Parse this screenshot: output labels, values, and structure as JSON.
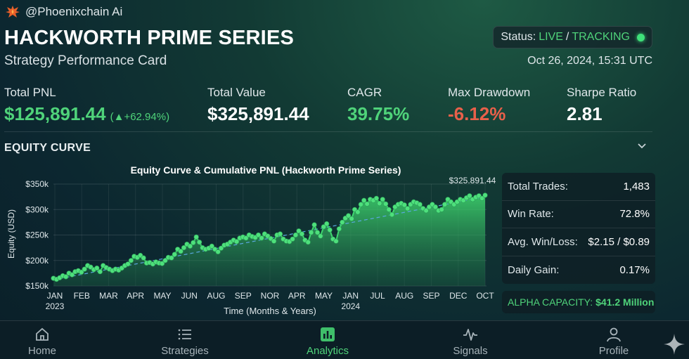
{
  "brand": {
    "name": "@Phoenixchain Ai",
    "icon": "phoenix-logo"
  },
  "header": {
    "title": "HACKWORTH PRIME SERIES",
    "subtitle": "Strategy Performance Card",
    "status_label": "Status:",
    "status_live": "LIVE",
    "status_sep": "/",
    "status_tracking": "TRACKING",
    "timestamp": "Oct 26, 2024, 15:31 UTC"
  },
  "metrics": [
    {
      "label": "Total PNL",
      "value": "$125,891.44",
      "delta": "(▲+62.94%)"
    },
    {
      "label": "Total Value",
      "value": "$325,891.44"
    },
    {
      "label": "CAGR",
      "value": "39.75%"
    },
    {
      "label": "Max Drawdown",
      "value": "-6.12%"
    },
    {
      "label": "Sharpe Ratio",
      "value": "2.81"
    }
  ],
  "section": {
    "title": "EQUITY CURVE"
  },
  "chart_data": {
    "type": "area",
    "title": "Equity Curve & Cumulative PNL (Hackworth Prime Series)",
    "xlabel": "Time (Months & Years)",
    "ylabel": "Equity (USD)",
    "ylim": [
      150000,
      330000
    ],
    "yticks": [
      "$150k",
      "$200k",
      "$250k",
      "$300k",
      "$350k"
    ],
    "ytick_values": [
      150000,
      200000,
      250000,
      300000,
      350000
    ],
    "xticks": [
      "JAN",
      "FEB",
      "MAR",
      "APR",
      "MAY",
      "JUN",
      "AUG",
      "SEP",
      "NOR",
      "APR",
      "MAY",
      "JAN",
      "JUL",
      "AUG",
      "SEP",
      "DEC",
      "OCT"
    ],
    "year_labels": [
      {
        "tick": 0,
        "text": "2023"
      },
      {
        "tick": 11,
        "text": "2024"
      }
    ],
    "end_label": "$325.891.44",
    "grid": true,
    "colors": {
      "line": "#3fd86f",
      "fill": "#2fa85a",
      "trend": "#5aa8e0"
    },
    "series": [
      {
        "values": [
          165000,
          163000,
          166000,
          170000,
          168000,
          175000,
          172000,
          178000,
          180000,
          177000,
          183000,
          190000,
          187000,
          182000,
          185000,
          178000,
          190000,
          186000,
          183000,
          180000,
          183000,
          181000,
          185000,
          190000,
          193000,
          200000,
          208000,
          206000,
          210000,
          205000,
          195000,
          196000,
          193000,
          197000,
          195000,
          194000,
          200000,
          206000,
          205000,
          212000,
          222000,
          218000,
          225000,
          232000,
          228000,
          235000,
          246000,
          236000,
          225000,
          222000,
          224000,
          228000,
          222000,
          217000,
          224000,
          230000,
          232000,
          236000,
          240000,
          237000,
          244000,
          246000,
          244000,
          250000,
          247000,
          245000,
          250000,
          244000,
          252000,
          248000,
          243000,
          238000,
          250000,
          252000,
          242000,
          238000,
          237000,
          242000,
          250000,
          258000,
          252000,
          240000,
          236000,
          255000,
          270000,
          255000,
          248000,
          266000,
          272000,
          260000,
          242000,
          238000,
          262000,
          275000,
          283000,
          288000,
          282000,
          300000,
          295000,
          310000,
          318000,
          311000,
          320000,
          318000,
          322000,
          312000,
          320000,
          311000,
          300000,
          290000,
          305000,
          310000,
          312000,
          309000,
          302000,
          310000,
          315000,
          313000,
          310000,
          302000,
          298000,
          305000,
          310000,
          305000,
          298000,
          300000,
          310000,
          320000,
          315000,
          310000,
          315000,
          320000,
          318000,
          323000,
          327000,
          320000,
          324000,
          327000,
          322000,
          328000
        ]
      },
      {
        "name": "Trend",
        "values": [
          162000,
          325000
        ]
      }
    ]
  },
  "stats": [
    {
      "label": "Total Trades:",
      "value": "1,483"
    },
    {
      "label": "Win Rate:",
      "value": "72.8%"
    },
    {
      "label": "Avg. Win/Loss:",
      "value": "$2.15 / $0.89"
    },
    {
      "label": "Daily Gain:",
      "value": "0.17%"
    }
  ],
  "alpha": {
    "label": "ALPHA CAPACITY:",
    "value": "$41.2 Million"
  },
  "nav": [
    {
      "label": "Home",
      "icon": "home-icon"
    },
    {
      "label": "Strategies",
      "icon": "list-icon"
    },
    {
      "label": "Analytics",
      "icon": "bar-chart-icon",
      "active": true
    },
    {
      "label": "Signals",
      "icon": "pulse-icon"
    },
    {
      "label": "Profile",
      "icon": "user-icon"
    }
  ]
}
